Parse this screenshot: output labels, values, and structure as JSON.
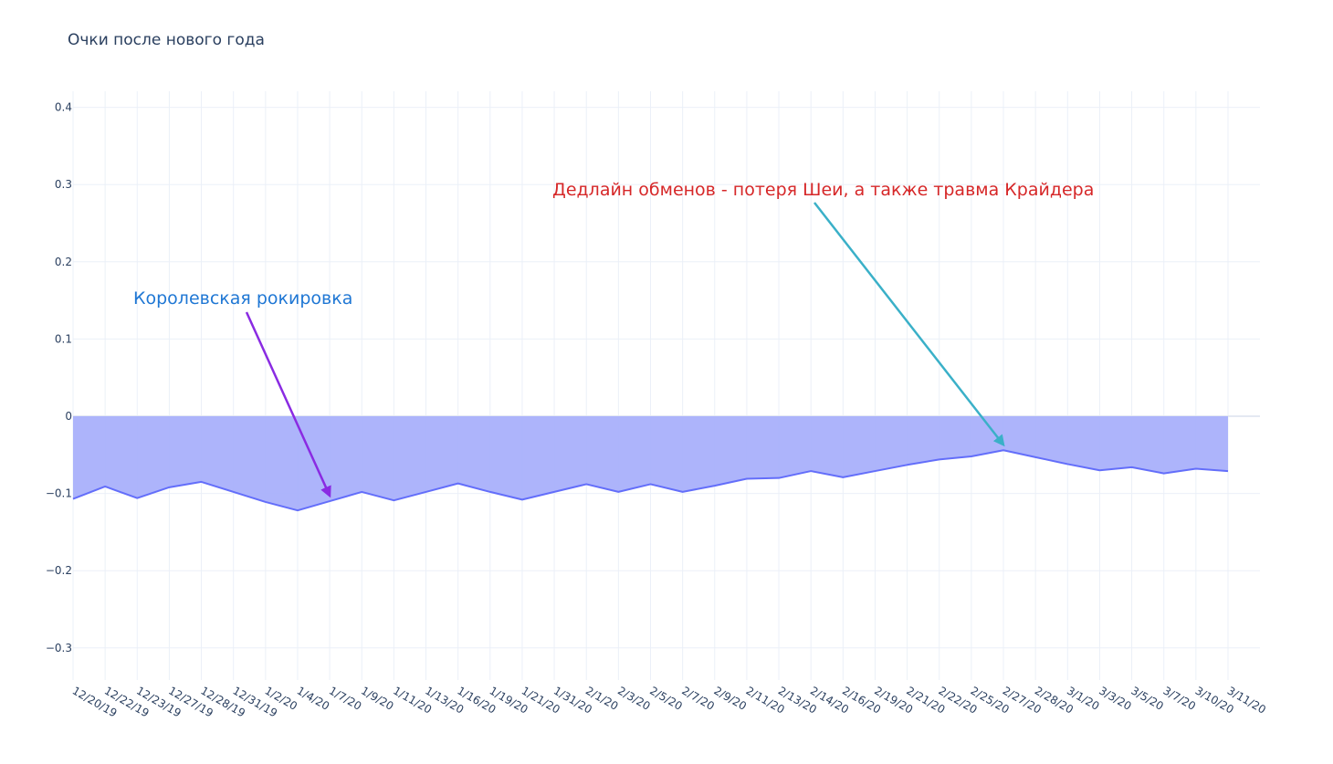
{
  "chart_data": {
    "type": "area",
    "title": "Очки после нового года",
    "xlabel": "",
    "ylabel": "",
    "ylim": [
      -0.35,
      0.42
    ],
    "yticks": [
      0.4,
      0.3,
      0.2,
      0.1,
      0,
      -0.1,
      -0.2,
      -0.3
    ],
    "ytick_labels": [
      "0.4",
      "0.3",
      "0.2",
      "0.1",
      "0",
      "−0.1",
      "−0.2",
      "−0.3"
    ],
    "grid": true,
    "fill": "tozeroy",
    "x": [
      "12/20/19",
      "12/22/19",
      "12/23/19",
      "12/27/19",
      "12/28/19",
      "12/31/19",
      "1/2/20",
      "1/4/20",
      "1/7/20",
      "1/9/20",
      "1/11/20",
      "1/13/20",
      "1/16/20",
      "1/19/20",
      "1/21/20",
      "1/31/20",
      "2/1/20",
      "2/3/20",
      "2/5/20",
      "2/7/20",
      "2/9/20",
      "2/11/20",
      "2/13/20",
      "2/14/20",
      "2/16/20",
      "2/19/20",
      "2/21/20",
      "2/22/20",
      "2/25/20",
      "2/27/20",
      "2/28/20",
      "3/1/20",
      "3/3/20",
      "3/5/20",
      "3/7/20",
      "3/10/20",
      "3/11/20"
    ],
    "series": [
      {
        "values": [
          -0.107,
          -0.091,
          -0.106,
          -0.092,
          -0.085,
          -0.098,
          -0.111,
          -0.122,
          -0.11,
          -0.098,
          -0.109,
          -0.098,
          -0.087,
          -0.098,
          -0.108,
          -0.098,
          -0.088,
          -0.098,
          -0.088,
          -0.098,
          -0.09,
          -0.081,
          -0.08,
          -0.071,
          -0.079,
          -0.071,
          -0.063,
          -0.056,
          -0.052,
          -0.044,
          -0.053,
          -0.062,
          -0.07,
          -0.066,
          -0.074,
          -0.068,
          -0.071
        ],
        "line_color": "#636efa",
        "fill_color": "#a9b0fb"
      }
    ],
    "annotations": [
      {
        "text": "Королевская рокировка",
        "color": "#1f77d4",
        "arrow_color": "#8a2be2",
        "target_x": "1/7/20",
        "target_y": -0.11
      },
      {
        "text": "Дедлайн обменов - потеря Шеи,  а также травма Крайдера",
        "color": "#d62728",
        "arrow_color": "#3ab0c8",
        "target_x": "2/27/20",
        "target_y": -0.044
      }
    ]
  }
}
